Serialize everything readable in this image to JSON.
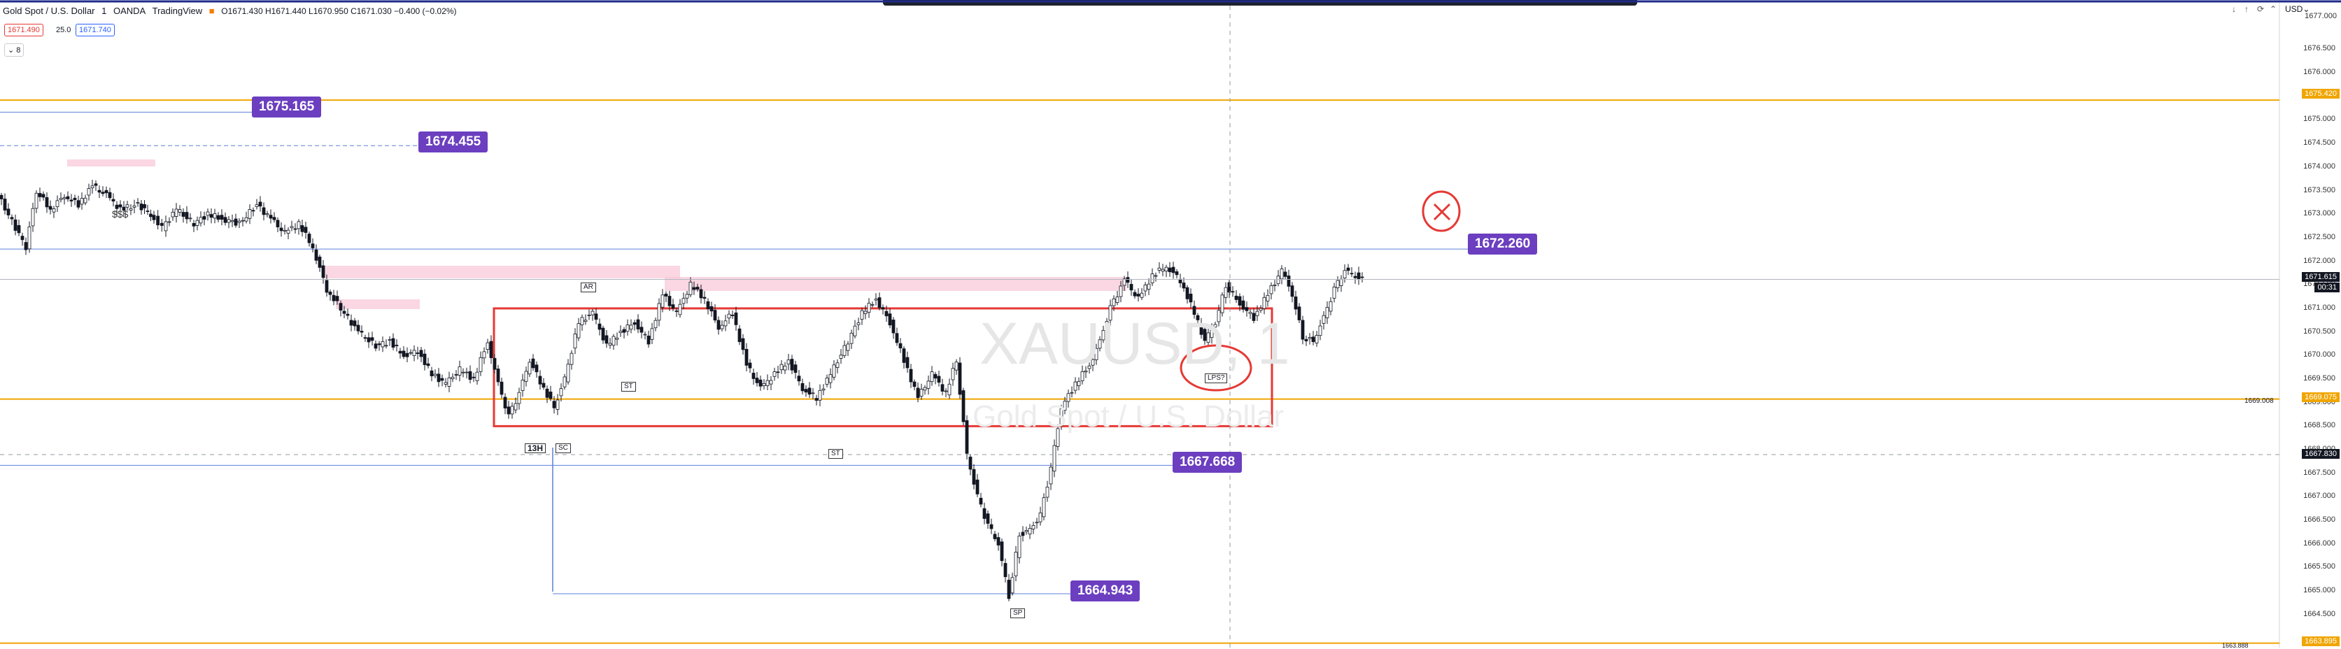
{
  "header": {
    "symbol": "Gold Spot / U.S. Dollar",
    "interval": "1",
    "broker": "OANDA",
    "platform": "TradingView",
    "ohlc": "O1671.430 H1671.440 L1670.950 C1671.030 −0.400 (−0.02%)",
    "bid": "1671.490",
    "spread": "25.0",
    "ask": "1671.740",
    "indicator_count": "8",
    "currency": "USD"
  },
  "annotations": {
    "level1": "1675.165",
    "level2": "1674.455",
    "level3": "1672.260",
    "level4": "1667.668",
    "level5": "1664.943",
    "dollars": "$$$",
    "ar": "AR",
    "st1": "ST",
    "st2": "ST",
    "sc": "SC",
    "sp": "SP",
    "lps": "LPS?",
    "timeframe": "13H",
    "watermark_symbol": "XAUUSD, 1",
    "watermark_name": "Gold Spot / U.S. Dollar"
  },
  "price_axis": {
    "ticks": [
      "1676.500",
      "1676.000",
      "1675.500",
      "1675.000",
      "1674.500",
      "1674.000",
      "1673.500",
      "1673.000",
      "1672.500",
      "1672.000",
      "1671.500",
      "1671.000",
      "1670.500",
      "1670.000",
      "1669.500",
      "1669.000",
      "1668.500",
      "1668.000",
      "1667.500",
      "1667.000",
      "1666.500",
      "1666.000",
      "1665.500",
      "1665.000",
      "1664.500"
    ],
    "tag_top": "1677.000",
    "tag_orange1": "1675.420",
    "tag_current": "1671.615",
    "tag_countdown": "00:31",
    "tag_orange2": "1669.075",
    "tag_mark": "1669.008",
    "tag_dark": "1667.830",
    "tag_orange3": "1663.895",
    "tag_bottom": "1663.888"
  },
  "colors": {
    "bull": "#131722",
    "line_blue": "#5b7fd9",
    "line_orange": "#f0a500",
    "rect_red": "#e53935",
    "zone_pink": "#f8c6d6",
    "callout_purple": "#6b3fbf"
  },
  "chart_data": {
    "type": "candlestick",
    "title": "Gold Spot / U.S. Dollar, 1, OANDA",
    "ylim": [
      1663.8,
      1677.1
    ],
    "horizontal_levels": [
      1675.165,
      1674.455,
      1672.26,
      1667.668,
      1664.943,
      1675.42,
      1669.075,
      1663.895
    ],
    "trading_range": {
      "top": 1671.0,
      "bottom": 1668.5
    },
    "current_price": 1671.615,
    "price_path": [
      [
        0,
        1673.4
      ],
      [
        40,
        1672.3
      ],
      [
        55,
        1673.5
      ],
      [
        75,
        1673.1
      ],
      [
        95,
        1673.4
      ],
      [
        115,
        1673.2
      ],
      [
        135,
        1673.6
      ],
      [
        155,
        1673.4
      ],
      [
        175,
        1673.1
      ],
      [
        200,
        1673.2
      ],
      [
        218,
        1673.0
      ],
      [
        235,
        1672.7
      ],
      [
        255,
        1673.1
      ],
      [
        280,
        1672.8
      ],
      [
        300,
        1673.0
      ],
      [
        320,
        1672.9
      ],
      [
        345,
        1672.8
      ],
      [
        370,
        1673.2
      ],
      [
        390,
        1672.9
      ],
      [
        410,
        1672.6
      ],
      [
        430,
        1672.8
      ],
      [
        450,
        1672.3
      ],
      [
        470,
        1671.4
      ],
      [
        495,
        1670.9
      ],
      [
        515,
        1670.5
      ],
      [
        540,
        1670.2
      ],
      [
        560,
        1670.3
      ],
      [
        580,
        1670.0
      ],
      [
        600,
        1670.1
      ],
      [
        620,
        1669.6
      ],
      [
        640,
        1669.4
      ],
      [
        660,
        1669.7
      ],
      [
        680,
        1669.5
      ],
      [
        700,
        1670.3
      ],
      [
        715,
        1669.4
      ],
      [
        730,
        1668.7
      ],
      [
        745,
        1669.2
      ],
      [
        760,
        1669.9
      ],
      [
        780,
        1669.3
      ],
      [
        795,
        1668.9
      ],
      [
        810,
        1669.5
      ],
      [
        830,
        1670.7
      ],
      [
        850,
        1670.9
      ],
      [
        870,
        1670.2
      ],
      [
        890,
        1670.5
      ],
      [
        910,
        1670.7
      ],
      [
        930,
        1670.3
      ],
      [
        950,
        1671.3
      ],
      [
        970,
        1670.9
      ],
      [
        990,
        1671.5
      ],
      [
        1010,
        1671.2
      ],
      [
        1030,
        1670.6
      ],
      [
        1050,
        1670.9
      ],
      [
        1070,
        1669.8
      ],
      [
        1090,
        1669.3
      ],
      [
        1110,
        1669.6
      ],
      [
        1130,
        1669.9
      ],
      [
        1150,
        1669.3
      ],
      [
        1170,
        1669.1
      ],
      [
        1190,
        1669.6
      ],
      [
        1215,
        1670.3
      ],
      [
        1235,
        1670.9
      ],
      [
        1255,
        1671.2
      ],
      [
        1275,
        1670.7
      ],
      [
        1295,
        1669.9
      ],
      [
        1315,
        1669.1
      ],
      [
        1335,
        1669.6
      ],
      [
        1355,
        1669.2
      ],
      [
        1370,
        1669.9
      ],
      [
        1385,
        1667.9
      ],
      [
        1400,
        1667.0
      ],
      [
        1415,
        1666.4
      ],
      [
        1430,
        1666.0
      ],
      [
        1445,
        1664.9
      ],
      [
        1460,
        1666.2
      ],
      [
        1475,
        1666.3
      ],
      [
        1490,
        1666.6
      ],
      [
        1505,
        1667.6
      ],
      [
        1520,
        1668.9
      ],
      [
        1540,
        1669.4
      ],
      [
        1560,
        1669.8
      ],
      [
        1575,
        1670.3
      ],
      [
        1590,
        1671.0
      ],
      [
        1610,
        1671.6
      ],
      [
        1630,
        1671.2
      ],
      [
        1650,
        1671.7
      ],
      [
        1670,
        1671.9
      ],
      [
        1690,
        1671.6
      ],
      [
        1710,
        1670.9
      ],
      [
        1725,
        1670.3
      ],
      [
        1740,
        1670.7
      ],
      [
        1755,
        1671.5
      ],
      [
        1775,
        1671.1
      ],
      [
        1795,
        1670.8
      ],
      [
        1815,
        1671.3
      ],
      [
        1835,
        1671.8
      ],
      [
        1850,
        1671.3
      ],
      [
        1865,
        1670.4
      ],
      [
        1880,
        1670.3
      ],
      [
        1895,
        1670.8
      ],
      [
        1910,
        1671.4
      ],
      [
        1925,
        1671.8
      ],
      [
        1940,
        1671.7
      ],
      [
        1950,
        1671.6
      ]
    ]
  }
}
